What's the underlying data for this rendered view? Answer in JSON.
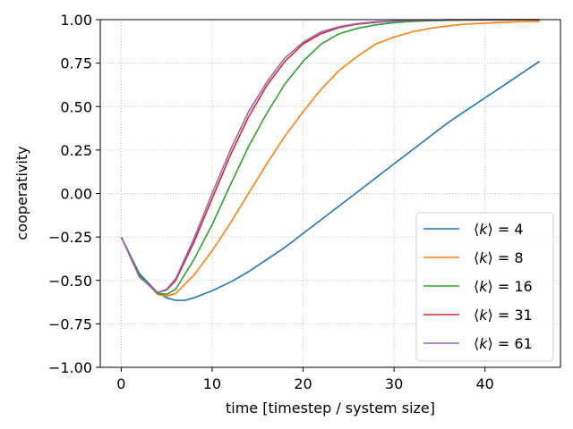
{
  "chart_data": {
    "type": "line",
    "title": "",
    "xlabel": "time [timestep / system size]",
    "ylabel": "cooperativity",
    "xlim": [
      -2.3,
      48.3
    ],
    "ylim": [
      -1.0,
      1.0
    ],
    "xticks": [
      0,
      10,
      20,
      30,
      40
    ],
    "yticks": [
      -1.0,
      -0.75,
      -0.5,
      -0.25,
      0.0,
      0.25,
      0.5,
      0.75,
      1.0
    ],
    "xtick_labels": [
      "0",
      "10",
      "20",
      "30",
      "40"
    ],
    "ytick_labels": [
      "−1.00",
      "−0.75",
      "−0.50",
      "−0.25",
      "0.00",
      "0.25",
      "0.50",
      "0.75",
      "1.00"
    ],
    "grid": true,
    "legend_position": "lower-right",
    "series": [
      {
        "name": "⟨k⟩ = 4",
        "k": "4",
        "color": "#1f77b4",
        "x": [
          0,
          2,
          4,
          5,
          6,
          7,
          8,
          10,
          12,
          14,
          16,
          18,
          20,
          22,
          24,
          26,
          28,
          30,
          32,
          34,
          36,
          38,
          40,
          42,
          44,
          46
        ],
        "y": [
          -0.25,
          -0.46,
          -0.57,
          -0.6,
          -0.615,
          -0.615,
          -0.6,
          -0.56,
          -0.51,
          -0.45,
          -0.38,
          -0.31,
          -0.23,
          -0.15,
          -0.07,
          0.01,
          0.09,
          0.17,
          0.25,
          0.33,
          0.41,
          0.48,
          0.55,
          0.62,
          0.69,
          0.76
        ]
      },
      {
        "name": "⟨k⟩ = 8",
        "k": "8",
        "color": "#ff7f0e",
        "x": [
          0,
          2,
          4,
          5,
          6,
          8,
          10,
          12,
          14,
          16,
          18,
          20,
          22,
          24,
          26,
          28,
          30,
          32,
          34,
          36,
          38,
          40,
          42,
          44,
          46
        ],
        "y": [
          -0.25,
          -0.47,
          -0.58,
          -0.59,
          -0.575,
          -0.47,
          -0.33,
          -0.17,
          0.0,
          0.17,
          0.33,
          0.47,
          0.6,
          0.71,
          0.79,
          0.86,
          0.9,
          0.93,
          0.95,
          0.965,
          0.975,
          0.98,
          0.985,
          0.988,
          0.99
        ]
      },
      {
        "name": "⟨k⟩ = 16",
        "k": "16",
        "color": "#2ca02c",
        "x": [
          0,
          2,
          4,
          5,
          6,
          8,
          10,
          12,
          14,
          16,
          18,
          20,
          22,
          24,
          26,
          28,
          30,
          32,
          34,
          36,
          38,
          40,
          42,
          44,
          46
        ],
        "y": [
          -0.25,
          -0.47,
          -0.575,
          -0.58,
          -0.55,
          -0.38,
          -0.18,
          0.05,
          0.27,
          0.46,
          0.63,
          0.76,
          0.86,
          0.92,
          0.95,
          0.97,
          0.983,
          0.99,
          0.994,
          0.996,
          0.997,
          0.998,
          0.998,
          0.999,
          0.999
        ]
      },
      {
        "name": "⟨k⟩ = 31",
        "k": "31",
        "color": "#d62728",
        "x": [
          0,
          2,
          4,
          5,
          6,
          8,
          10,
          12,
          14,
          16,
          18,
          20,
          22,
          24,
          26,
          28,
          30,
          32,
          34,
          36,
          38,
          40,
          42,
          44,
          46
        ],
        "y": [
          -0.25,
          -0.48,
          -0.57,
          -0.555,
          -0.5,
          -0.28,
          -0.03,
          0.22,
          0.44,
          0.62,
          0.76,
          0.86,
          0.92,
          0.955,
          0.975,
          0.985,
          0.992,
          0.996,
          0.998,
          0.999,
          0.999,
          1.0,
          1.0,
          1.0,
          1.0
        ]
      },
      {
        "name": "⟨k⟩ = 61",
        "k": "61",
        "color": "#9467bd",
        "x": [
          0,
          2,
          4,
          5,
          6,
          8,
          10,
          12,
          14,
          16,
          18,
          20,
          22,
          24,
          26,
          28,
          30,
          32,
          34,
          36,
          38,
          40,
          42,
          44,
          46
        ],
        "y": [
          -0.25,
          -0.48,
          -0.57,
          -0.55,
          -0.49,
          -0.26,
          0.0,
          0.25,
          0.47,
          0.64,
          0.78,
          0.87,
          0.93,
          0.96,
          0.978,
          0.988,
          0.993,
          0.996,
          0.998,
          0.999,
          0.999,
          1.0,
          1.0,
          1.0,
          1.0
        ]
      }
    ]
  }
}
